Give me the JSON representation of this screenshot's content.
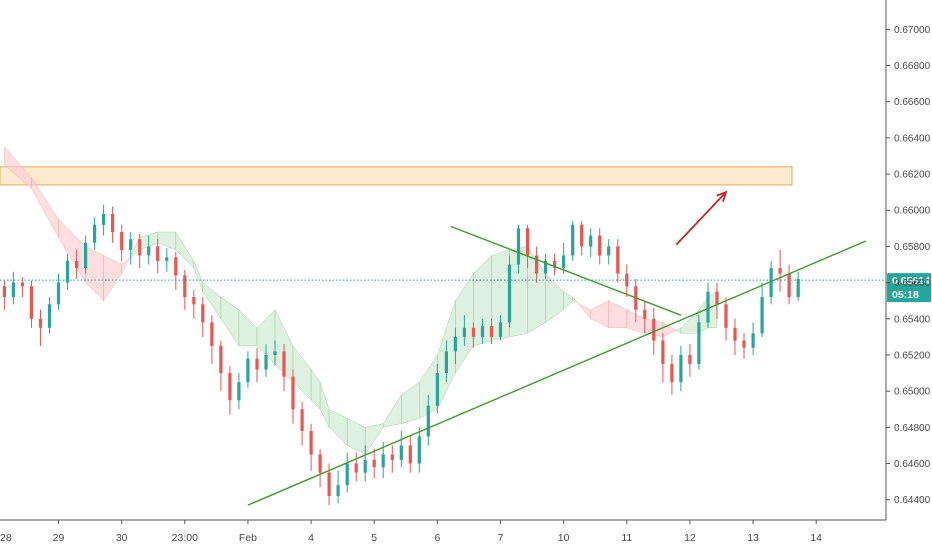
{
  "chart_data": {
    "type": "candlestick",
    "symbol_price": "0.65614",
    "countdown": "05:18",
    "current_price": 0.65614,
    "ylim": [
      0.6431,
      0.6714
    ],
    "y_ticks": [
      "0.67000",
      "0.66800",
      "0.66600",
      "0.66400",
      "0.66200",
      "0.66000",
      "0.65800",
      "0.65600",
      "0.65400",
      "0.65200",
      "0.65000",
      "0.64800",
      "0.64600",
      "0.64400"
    ],
    "x_ticks": [
      {
        "label": "28",
        "slot": -1
      },
      {
        "label": "29",
        "slot": 6
      },
      {
        "label": "30",
        "slot": 13
      },
      {
        "label": "23:00",
        "slot": 20
      },
      {
        "label": "Feb",
        "slot": 27
      },
      {
        "label": "4",
        "slot": 34
      },
      {
        "label": "5",
        "slot": 41
      },
      {
        "label": "6",
        "slot": 48
      },
      {
        "label": "7",
        "slot": 55
      },
      {
        "label": "10",
        "slot": 62
      },
      {
        "label": "11",
        "slot": 69
      },
      {
        "label": "12",
        "slot": 76
      },
      {
        "label": "13",
        "slot": 83
      },
      {
        "label": "14",
        "slot": 90
      }
    ],
    "resistance_zone": {
      "top": 0.6624,
      "bottom": 0.6614
    },
    "trendlines": [
      {
        "name": "rising-support",
        "from": {
          "slot": 27,
          "price": 0.6437
        },
        "to": {
          "slot": 95.5,
          "price": 0.6583
        }
      },
      {
        "name": "descending-resistance",
        "from": {
          "slot": 49.5,
          "price": 0.6591
        },
        "to": {
          "slot": 75,
          "price": 0.6542
        }
      }
    ],
    "projection_arrow": {
      "from": {
        "slot": 74.5,
        "price": 0.6581
      },
      "to": {
        "slot": 80,
        "price": 0.661
      }
    },
    "candles": [
      [
        0.6558,
        0.6552,
        0.6545,
        0.6561
      ],
      [
        0.6552,
        0.656,
        0.6548,
        0.6566
      ],
      [
        0.656,
        0.6558,
        0.6552,
        0.6563
      ],
      [
        0.6558,
        0.654,
        0.6535,
        0.6561
      ],
      [
        0.654,
        0.6535,
        0.6525,
        0.6545
      ],
      [
        0.6535,
        0.6548,
        0.6532,
        0.6552
      ],
      [
        0.6548,
        0.656,
        0.6545,
        0.6565
      ],
      [
        0.656,
        0.6572,
        0.6556,
        0.6576
      ],
      [
        0.6572,
        0.6568,
        0.6562,
        0.6578
      ],
      [
        0.6568,
        0.6582,
        0.6565,
        0.6586
      ],
      [
        0.6582,
        0.6592,
        0.6578,
        0.6596
      ],
      [
        0.6592,
        0.6598,
        0.6586,
        0.6603
      ],
      [
        0.6598,
        0.6588,
        0.6582,
        0.6602
      ],
      [
        0.6588,
        0.6578,
        0.6572,
        0.6592
      ],
      [
        0.6578,
        0.6584,
        0.657,
        0.6588
      ],
      [
        0.6584,
        0.6575,
        0.6568,
        0.6587
      ],
      [
        0.6575,
        0.658,
        0.657,
        0.6586
      ],
      [
        0.658,
        0.6572,
        0.6565,
        0.6584
      ],
      [
        0.6572,
        0.6574,
        0.6566,
        0.6579
      ],
      [
        0.6574,
        0.6564,
        0.6556,
        0.6577
      ],
      [
        0.6564,
        0.6552,
        0.6545,
        0.6567
      ],
      [
        0.6552,
        0.6548,
        0.654,
        0.6556
      ],
      [
        0.6548,
        0.6538,
        0.653,
        0.6552
      ],
      [
        0.6538,
        0.6525,
        0.6515,
        0.6542
      ],
      [
        0.6525,
        0.651,
        0.65,
        0.6528
      ],
      [
        0.651,
        0.6495,
        0.6487,
        0.6514
      ],
      [
        0.6495,
        0.6505,
        0.649,
        0.651
      ],
      [
        0.6505,
        0.6518,
        0.6502,
        0.6522
      ],
      [
        0.6518,
        0.6512,
        0.6505,
        0.6524
      ],
      [
        0.6512,
        0.652,
        0.6508,
        0.6526
      ],
      [
        0.652,
        0.6522,
        0.6514,
        0.6528
      ],
      [
        0.6522,
        0.6508,
        0.65,
        0.6526
      ],
      [
        0.6508,
        0.649,
        0.6482,
        0.6512
      ],
      [
        0.649,
        0.6478,
        0.647,
        0.6494
      ],
      [
        0.6478,
        0.6465,
        0.6456,
        0.6482
      ],
      [
        0.6465,
        0.6455,
        0.6447,
        0.6468
      ],
      [
        0.6455,
        0.6442,
        0.6437,
        0.646
      ],
      [
        0.6442,
        0.6448,
        0.6438,
        0.6456
      ],
      [
        0.6448,
        0.646,
        0.6444,
        0.6466
      ],
      [
        0.646,
        0.6455,
        0.645,
        0.6466
      ],
      [
        0.6455,
        0.6462,
        0.645,
        0.647
      ],
      [
        0.6462,
        0.6458,
        0.6452,
        0.6468
      ],
      [
        0.6458,
        0.6465,
        0.6452,
        0.6472
      ],
      [
        0.6465,
        0.6462,
        0.6455,
        0.647
      ],
      [
        0.6462,
        0.647,
        0.6458,
        0.6478
      ],
      [
        0.647,
        0.646,
        0.6455,
        0.6475
      ],
      [
        0.646,
        0.6475,
        0.6455,
        0.648
      ],
      [
        0.6475,
        0.6492,
        0.647,
        0.6498
      ],
      [
        0.6492,
        0.651,
        0.6488,
        0.6515
      ],
      [
        0.651,
        0.6522,
        0.6505,
        0.6528
      ],
      [
        0.6522,
        0.653,
        0.6515,
        0.6535
      ],
      [
        0.653,
        0.6535,
        0.6525,
        0.6542
      ],
      [
        0.6535,
        0.653,
        0.6524,
        0.6538
      ],
      [
        0.653,
        0.6536,
        0.6526,
        0.654
      ],
      [
        0.6536,
        0.653,
        0.6526,
        0.654
      ],
      [
        0.653,
        0.6538,
        0.6528,
        0.6542
      ],
      [
        0.6538,
        0.657,
        0.6535,
        0.6575
      ],
      [
        0.657,
        0.659,
        0.6565,
        0.6592
      ],
      [
        0.659,
        0.6575,
        0.6568,
        0.6592
      ],
      [
        0.6575,
        0.6565,
        0.656,
        0.658
      ],
      [
        0.6565,
        0.6572,
        0.6562,
        0.6576
      ],
      [
        0.6572,
        0.6568,
        0.6564,
        0.6576
      ],
      [
        0.6568,
        0.6575,
        0.6565,
        0.6582
      ],
      [
        0.6575,
        0.6592,
        0.6572,
        0.6594
      ],
      [
        0.6592,
        0.658,
        0.6575,
        0.6594
      ],
      [
        0.658,
        0.6586,
        0.6574,
        0.659
      ],
      [
        0.6586,
        0.6575,
        0.657,
        0.659
      ],
      [
        0.6575,
        0.658,
        0.657,
        0.6584
      ],
      [
        0.658,
        0.6565,
        0.656,
        0.6584
      ],
      [
        0.6565,
        0.6558,
        0.6552,
        0.657
      ],
      [
        0.6558,
        0.6545,
        0.6538,
        0.6562
      ],
      [
        0.6545,
        0.654,
        0.6532,
        0.655
      ],
      [
        0.654,
        0.6528,
        0.652,
        0.6546
      ],
      [
        0.6528,
        0.6515,
        0.6505,
        0.6532
      ],
      [
        0.6515,
        0.6505,
        0.6498,
        0.652
      ],
      [
        0.6505,
        0.652,
        0.65,
        0.6525
      ],
      [
        0.652,
        0.6515,
        0.6508,
        0.6526
      ],
      [
        0.6515,
        0.6538,
        0.6512,
        0.6542
      ],
      [
        0.6538,
        0.6555,
        0.6535,
        0.656
      ],
      [
        0.6555,
        0.6548,
        0.654,
        0.656
      ],
      [
        0.6548,
        0.6535,
        0.6528,
        0.6552
      ],
      [
        0.6535,
        0.6528,
        0.652,
        0.654
      ],
      [
        0.6528,
        0.6524,
        0.6518,
        0.6532
      ],
      [
        0.6524,
        0.6532,
        0.652,
        0.6538
      ],
      [
        0.6532,
        0.6552,
        0.653,
        0.656
      ],
      [
        0.6552,
        0.6568,
        0.6548,
        0.6572
      ],
      [
        0.6568,
        0.6565,
        0.6555,
        0.6578
      ],
      [
        0.6565,
        0.6552,
        0.6548,
        0.657
      ],
      [
        0.6552,
        0.6562,
        0.655,
        0.6566
      ]
    ],
    "cloud": [
      {
        "slot": 0,
        "a": 0.6635,
        "b": 0.6625
      },
      {
        "slot": 3,
        "a": 0.6618,
        "b": 0.6612
      },
      {
        "slot": 6,
        "a": 0.6595,
        "b": 0.6585
      },
      {
        "slot": 9,
        "a": 0.658,
        "b": 0.656
      },
      {
        "slot": 11,
        "a": 0.6575,
        "b": 0.655
      },
      {
        "slot": 13,
        "a": 0.657,
        "b": 0.6565
      },
      {
        "slot": 15,
        "a": 0.6578,
        "b": 0.6585
      },
      {
        "slot": 17,
        "a": 0.6582,
        "b": 0.6588
      },
      {
        "slot": 19,
        "a": 0.6578,
        "b": 0.6588
      },
      {
        "slot": 21,
        "a": 0.6568,
        "b": 0.6572
      },
      {
        "slot": 22,
        "a": 0.6555,
        "b": 0.656
      },
      {
        "slot": 24,
        "a": 0.654,
        "b": 0.6552
      },
      {
        "slot": 26,
        "a": 0.6525,
        "b": 0.6545
      },
      {
        "slot": 28,
        "a": 0.6525,
        "b": 0.6535
      },
      {
        "slot": 30,
        "a": 0.6515,
        "b": 0.6545
      },
      {
        "slot": 32,
        "a": 0.6505,
        "b": 0.6525
      },
      {
        "slot": 34,
        "a": 0.6495,
        "b": 0.6512
      },
      {
        "slot": 35,
        "a": 0.649,
        "b": 0.6505
      },
      {
        "slot": 36,
        "a": 0.648,
        "b": 0.649
      },
      {
        "slot": 38,
        "a": 0.647,
        "b": 0.6485
      },
      {
        "slot": 40,
        "a": 0.6465,
        "b": 0.648
      },
      {
        "slot": 42,
        "a": 0.648,
        "b": 0.6482
      },
      {
        "slot": 44,
        "a": 0.6482,
        "b": 0.6498
      },
      {
        "slot": 46,
        "a": 0.6485,
        "b": 0.6505
      },
      {
        "slot": 48,
        "a": 0.649,
        "b": 0.652
      },
      {
        "slot": 50,
        "a": 0.651,
        "b": 0.655
      },
      {
        "slot": 52,
        "a": 0.6525,
        "b": 0.6565
      },
      {
        "slot": 54,
        "a": 0.6528,
        "b": 0.6575
      },
      {
        "slot": 56,
        "a": 0.653,
        "b": 0.6578
      },
      {
        "slot": 58,
        "a": 0.6532,
        "b": 0.658
      },
      {
        "slot": 60,
        "a": 0.6538,
        "b": 0.6565
      },
      {
        "slot": 62,
        "a": 0.6545,
        "b": 0.6555
      },
      {
        "slot": 63,
        "a": 0.655,
        "b": 0.6552
      },
      {
        "slot": 65,
        "a": 0.6545,
        "b": 0.654
      },
      {
        "slot": 67,
        "a": 0.655,
        "b": 0.6535
      },
      {
        "slot": 69,
        "a": 0.6545,
        "b": 0.6535
      },
      {
        "slot": 71,
        "a": 0.654,
        "b": 0.6532
      },
      {
        "slot": 73,
        "a": 0.6538,
        "b": 0.653
      },
      {
        "slot": 75,
        "a": 0.6532,
        "b": 0.6535
      },
      {
        "slot": 77,
        "a": 0.6532,
        "b": 0.6545
      },
      {
        "slot": 78,
        "a": 0.6535,
        "b": 0.6552
      },
      {
        "slot": 79,
        "a": 0.6535,
        "b": 0.6555
      }
    ]
  }
}
